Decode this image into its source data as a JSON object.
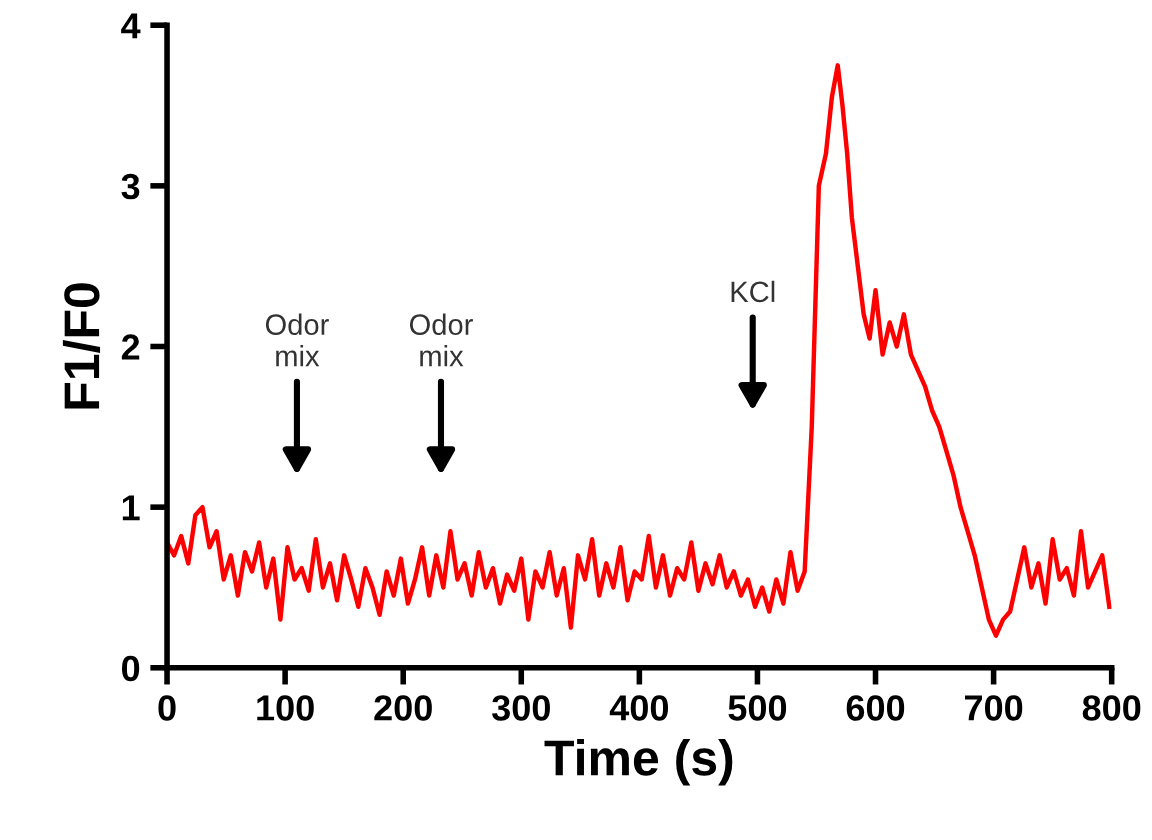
{
  "chart_data": {
    "type": "line",
    "xlabel": "Time (s)",
    "ylabel": "F1/F0",
    "xlim": [
      0,
      800
    ],
    "ylim": [
      0,
      4
    ],
    "xticks": [
      0,
      100,
      200,
      300,
      400,
      500,
      600,
      700,
      800
    ],
    "yticks": [
      0,
      1,
      2,
      3,
      4
    ],
    "grid": false,
    "legend": false,
    "marker": "none",
    "line_style": "solid",
    "annotations": [
      "Odor\nmix",
      "Odor\nmix",
      "KCl"
    ],
    "series": [
      {
        "color": "#ff0000",
        "x": [
          0,
          6,
          12,
          18,
          24,
          30,
          36,
          42,
          48,
          54,
          60,
          66,
          72,
          78,
          84,
          90,
          96,
          102,
          108,
          114,
          120,
          126,
          132,
          138,
          144,
          150,
          156,
          162,
          168,
          174,
          180,
          186,
          192,
          198,
          204,
          210,
          216,
          222,
          228,
          234,
          240,
          246,
          252,
          258,
          264,
          270,
          276,
          282,
          288,
          294,
          300,
          306,
          312,
          318,
          324,
          330,
          336,
          342,
          348,
          354,
          360,
          366,
          372,
          378,
          384,
          390,
          396,
          402,
          408,
          414,
          420,
          426,
          432,
          438,
          444,
          450,
          456,
          462,
          468,
          474,
          480,
          486,
          492,
          498,
          504,
          510,
          516,
          522,
          528,
          534,
          540,
          546,
          552,
          558,
          563,
          568,
          572,
          576,
          580,
          585,
          590,
          595,
          600,
          606,
          612,
          618,
          624,
          630,
          636,
          642,
          648,
          654,
          660,
          666,
          672,
          678,
          684,
          690,
          696,
          702,
          708,
          714,
          720,
          726,
          732,
          738,
          744,
          750,
          756,
          762,
          768,
          774,
          780,
          786,
          792,
          798
        ],
        "values": [
          0.78,
          0.7,
          0.82,
          0.65,
          0.95,
          1.0,
          0.75,
          0.85,
          0.55,
          0.7,
          0.45,
          0.72,
          0.6,
          0.78,
          0.5,
          0.68,
          0.3,
          0.75,
          0.55,
          0.62,
          0.48,
          0.8,
          0.5,
          0.65,
          0.42,
          0.7,
          0.55,
          0.38,
          0.62,
          0.5,
          0.33,
          0.6,
          0.45,
          0.68,
          0.4,
          0.55,
          0.75,
          0.45,
          0.7,
          0.5,
          0.85,
          0.55,
          0.65,
          0.45,
          0.72,
          0.5,
          0.62,
          0.4,
          0.58,
          0.48,
          0.68,
          0.3,
          0.6,
          0.5,
          0.72,
          0.45,
          0.62,
          0.25,
          0.7,
          0.55,
          0.8,
          0.45,
          0.65,
          0.5,
          0.75,
          0.42,
          0.6,
          0.55,
          0.82,
          0.5,
          0.7,
          0.45,
          0.62,
          0.55,
          0.78,
          0.48,
          0.65,
          0.52,
          0.7,
          0.5,
          0.6,
          0.45,
          0.55,
          0.38,
          0.5,
          0.35,
          0.55,
          0.4,
          0.72,
          0.48,
          0.6,
          1.5,
          3.0,
          3.2,
          3.55,
          3.75,
          3.5,
          3.2,
          2.8,
          2.5,
          2.2,
          2.05,
          2.35,
          1.95,
          2.15,
          2.0,
          2.2,
          1.95,
          1.85,
          1.75,
          1.6,
          1.5,
          1.35,
          1.2,
          1.0,
          0.85,
          0.7,
          0.5,
          0.3,
          0.2,
          0.3,
          0.35,
          0.55,
          0.75,
          0.5,
          0.65,
          0.4,
          0.8,
          0.55,
          0.62,
          0.45,
          0.85,
          0.5,
          0.6,
          0.7,
          0.38
        ]
      }
    ]
  }
}
